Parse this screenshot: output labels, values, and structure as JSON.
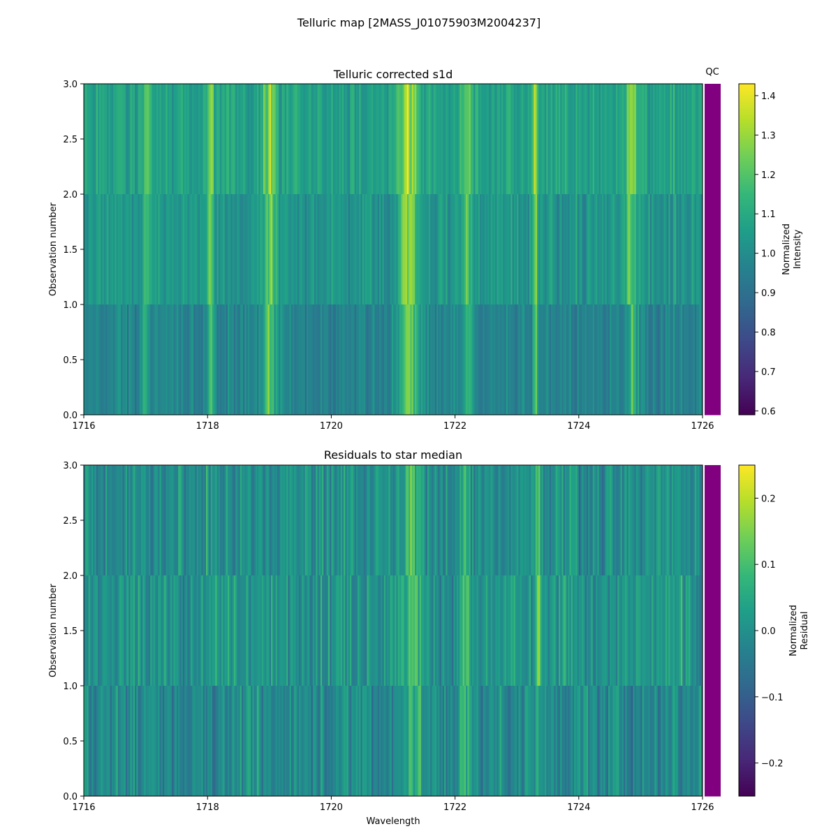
{
  "suptitle": "Telluric map [2MASS_J01075903M2004237]",
  "colors": {
    "qc": "#800080",
    "viridis": [
      "#440154",
      "#482878",
      "#3e4989",
      "#31688e",
      "#26828e",
      "#1f9e89",
      "#35b779",
      "#6ece58",
      "#b5de2b",
      "#fde725"
    ]
  },
  "chart_data": [
    {
      "type": "heatmap",
      "title": "Telluric corrected s1d",
      "xlabel": "",
      "ylabel": "Observation number",
      "xlim": [
        1716,
        1726
      ],
      "ylim": [
        0,
        3
      ],
      "x_ticks": [
        1716,
        1718,
        1720,
        1722,
        1724,
        1726
      ],
      "y_ticks": [
        "0.0",
        "0.5",
        "1.0",
        "1.5",
        "2.0",
        "2.5",
        "3.0"
      ],
      "rows": 3,
      "columns_per_row": 400,
      "value_range": [
        0.59,
        1.43
      ],
      "features": [
        {
          "center": 1717.0,
          "width": 0.05,
          "amp": 0.12
        },
        {
          "center": 1718.05,
          "width": 0.03,
          "amp": 0.25
        },
        {
          "center": 1719.0,
          "width": 0.08,
          "amp": 0.2
        },
        {
          "center": 1721.25,
          "width": 0.12,
          "amp": 0.25
        },
        {
          "center": 1722.2,
          "width": 0.05,
          "amp": 0.18
        },
        {
          "center": 1723.3,
          "width": 0.03,
          "amp": 0.22
        },
        {
          "center": 1724.85,
          "width": 0.06,
          "amp": 0.2
        }
      ],
      "row_offsets": [
        -0.04,
        0.02,
        0.06
      ],
      "noise": 0.08,
      "qc_label": "QC",
      "qc_column": [
        "pass",
        "pass",
        "pass"
      ],
      "colorbar": {
        "label_lines": [
          "Normalized",
          "Intensity"
        ],
        "min": 0.59,
        "max": 1.43,
        "ticks": [
          "0.6",
          "0.7",
          "0.8",
          "0.9",
          "1.0",
          "1.1",
          "1.2",
          "1.3",
          "1.4"
        ]
      }
    },
    {
      "type": "heatmap",
      "title": "Residuals to star median",
      "xlabel": "Wavelength",
      "ylabel": "Observation number",
      "xlim": [
        1716,
        1726
      ],
      "ylim": [
        0,
        3
      ],
      "x_ticks": [
        1716,
        1718,
        1720,
        1722,
        1724,
        1726
      ],
      "y_ticks": [
        "0.0",
        "0.5",
        "1.0",
        "1.5",
        "2.0",
        "2.5",
        "3.0"
      ],
      "rows": 3,
      "columns_per_row": 400,
      "value_range": [
        -0.25,
        0.25
      ],
      "features": [
        {
          "center": 1721.3,
          "width": 0.1,
          "amp": 0.1
        },
        {
          "center": 1722.15,
          "width": 0.06,
          "amp": 0.08
        },
        {
          "center": 1723.35,
          "width": 0.03,
          "amp": 0.1
        }
      ],
      "row_offsets": [
        -0.01,
        0.01,
        0.0
      ],
      "noise": 0.07,
      "qc_label": "",
      "qc_column": [
        "pass",
        "pass",
        "pass"
      ],
      "colorbar": {
        "label_lines": [
          "Normalized",
          "Residual"
        ],
        "min": -0.25,
        "max": 0.25,
        "ticks": [
          "−0.2",
          "−0.1",
          "0.0",
          "0.1",
          "0.2"
        ]
      }
    }
  ]
}
